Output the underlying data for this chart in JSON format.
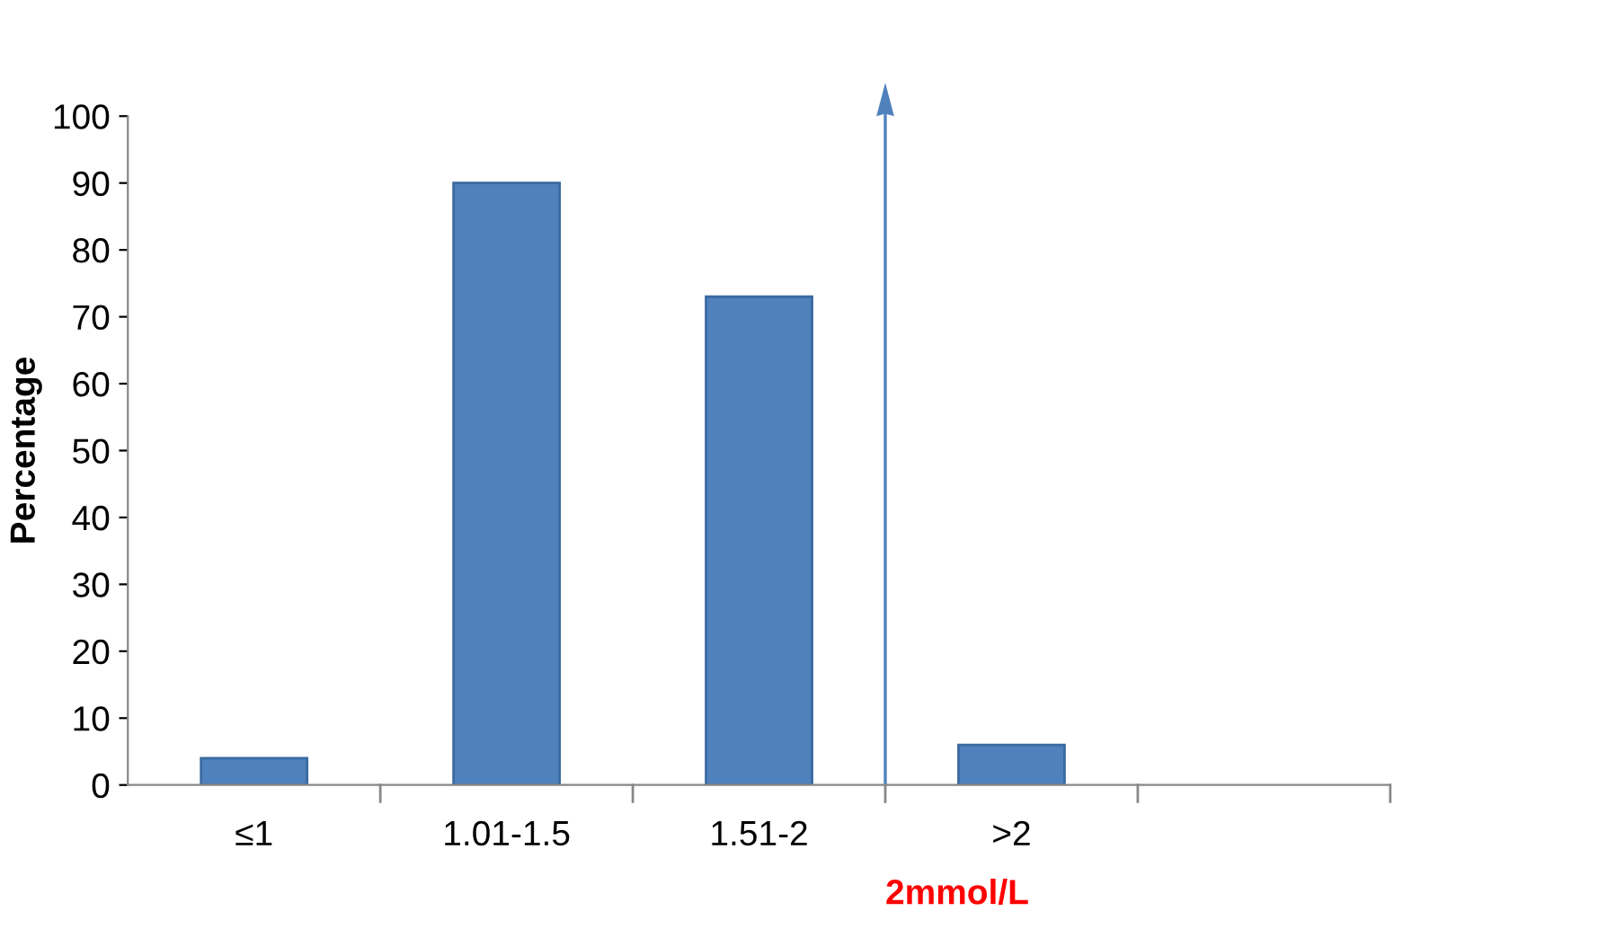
{
  "chart_data": {
    "type": "bar",
    "ylabel": "Percentage",
    "categories": [
      "≤1",
      "1.01-1.5",
      "1.51-2",
      ">2",
      null
    ],
    "values": [
      4,
      90,
      73,
      6,
      null
    ],
    "color": "#4f81bd",
    "ylim": [
      0,
      100
    ],
    "yticks": [
      0,
      10,
      20,
      30,
      40,
      50,
      60,
      70,
      80,
      90,
      100
    ],
    "grid": false,
    "legend": false,
    "annotations": [
      "2mmol/L"
    ]
  }
}
